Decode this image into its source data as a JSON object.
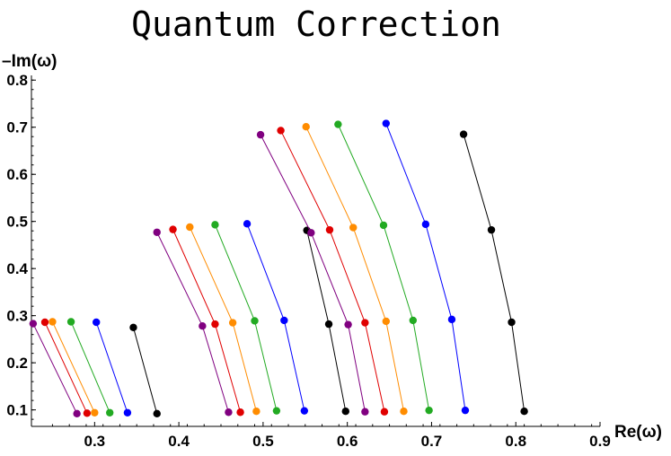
{
  "chart_data": {
    "type": "line",
    "title": "Quantum Correction",
    "xlabel": "Re(ω)",
    "ylabel": "–Im(ω)",
    "xlim": [
      0.225,
      0.9
    ],
    "ylim": [
      0.065,
      0.81
    ],
    "grid": false,
    "x_ticks": [
      "0.3",
      "0.4",
      "0.5",
      "0.6",
      "0.7",
      "0.8",
      "0.9"
    ],
    "x_tick_values": [
      0.3,
      0.4,
      0.5,
      0.6,
      0.7,
      0.8,
      0.9
    ],
    "y_ticks": [
      "0.1",
      "0.2",
      "0.3",
      "0.4",
      "0.5",
      "0.6",
      "0.7",
      "0.8"
    ],
    "y_tick_values": [
      0.1,
      0.2,
      0.3,
      0.4,
      0.5,
      0.6,
      0.7,
      0.8
    ],
    "colors": {
      "purple": "#800080",
      "red": "#e00000",
      "orange": "#ff8c00",
      "green": "#22aa22",
      "blue": "#0000ff",
      "black": "#000000"
    },
    "series": [
      {
        "color": "purple",
        "x": [
          0.227,
          0.279
        ],
        "y": [
          0.283,
          0.092
        ]
      },
      {
        "color": "red",
        "x": [
          0.241,
          0.291
        ],
        "y": [
          0.286,
          0.093
        ]
      },
      {
        "color": "orange",
        "x": [
          0.25,
          0.3
        ],
        "y": [
          0.287,
          0.094
        ]
      },
      {
        "color": "green",
        "x": [
          0.272,
          0.318
        ],
        "y": [
          0.287,
          0.094
        ]
      },
      {
        "color": "blue",
        "x": [
          0.302,
          0.339
        ],
        "y": [
          0.286,
          0.094
        ]
      },
      {
        "color": "black",
        "x": [
          0.346,
          0.374
        ],
        "y": [
          0.275,
          0.092
        ]
      },
      {
        "color": "purple",
        "x": [
          0.374,
          0.428,
          0.459
        ],
        "y": [
          0.477,
          0.278,
          0.095
        ]
      },
      {
        "color": "red",
        "x": [
          0.393,
          0.443,
          0.473
        ],
        "y": [
          0.483,
          0.282,
          0.095
        ]
      },
      {
        "color": "orange",
        "x": [
          0.413,
          0.464,
          0.492
        ],
        "y": [
          0.488,
          0.285,
          0.097
        ]
      },
      {
        "color": "green",
        "x": [
          0.443,
          0.49,
          0.516
        ],
        "y": [
          0.493,
          0.289,
          0.098
        ]
      },
      {
        "color": "blue",
        "x": [
          0.481,
          0.525,
          0.549
        ],
        "y": [
          0.495,
          0.29,
          0.098
        ]
      },
      {
        "color": "black",
        "x": [
          0.552,
          0.578,
          0.598
        ],
        "y": [
          0.481,
          0.282,
          0.097
        ]
      },
      {
        "color": "purple",
        "x": [
          0.497,
          0.557,
          0.601,
          0.621
        ],
        "y": [
          0.684,
          0.476,
          0.281,
          0.096
        ]
      },
      {
        "color": "red",
        "x": [
          0.521,
          0.579,
          0.621,
          0.644
        ],
        "y": [
          0.693,
          0.482,
          0.285,
          0.096
        ]
      },
      {
        "color": "orange",
        "x": [
          0.551,
          0.607,
          0.646,
          0.667
        ],
        "y": [
          0.701,
          0.487,
          0.288,
          0.097
        ]
      },
      {
        "color": "green",
        "x": [
          0.589,
          0.643,
          0.678,
          0.697
        ],
        "y": [
          0.706,
          0.492,
          0.29,
          0.099
        ]
      },
      {
        "color": "blue",
        "x": [
          0.646,
          0.693,
          0.724,
          0.74
        ],
        "y": [
          0.708,
          0.494,
          0.292,
          0.099
        ]
      },
      {
        "color": "black",
        "x": [
          0.738,
          0.771,
          0.795,
          0.81
        ],
        "y": [
          0.685,
          0.482,
          0.286,
          0.097
        ]
      }
    ]
  }
}
